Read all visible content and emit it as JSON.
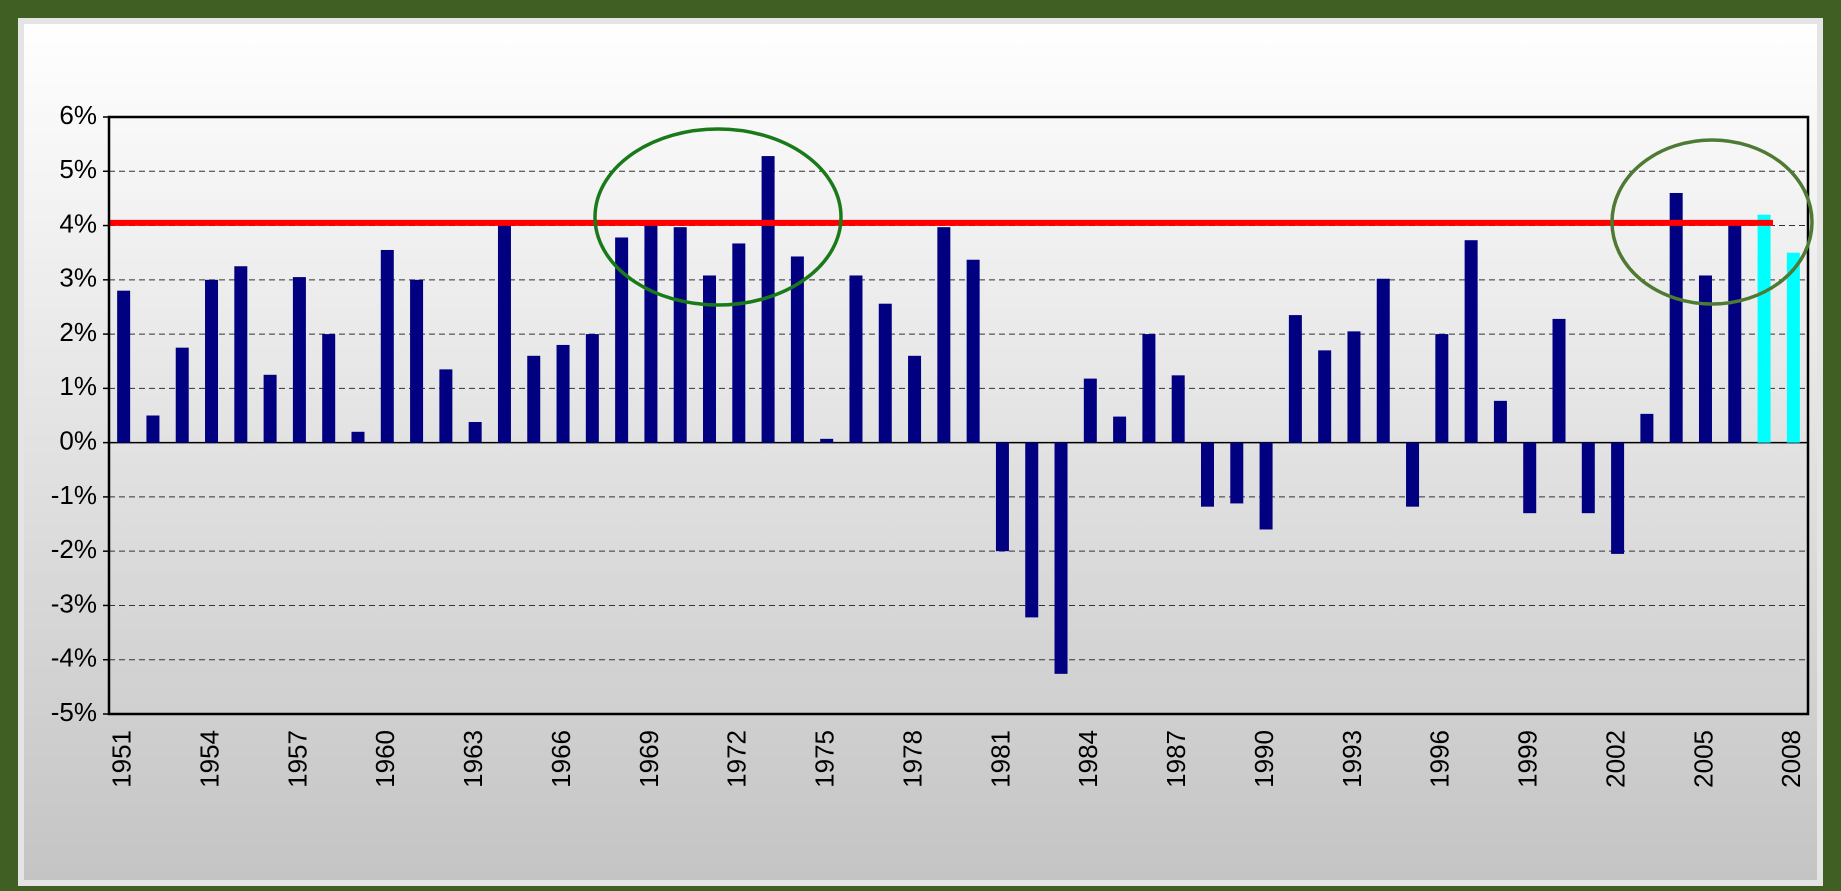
{
  "chart_data": {
    "type": "bar",
    "categories": [
      "1951",
      null,
      null,
      "1954",
      null,
      null,
      "1957",
      null,
      null,
      "1960",
      null,
      null,
      "1963",
      null,
      null,
      "1966",
      null,
      null,
      "1969",
      null,
      null,
      "1972",
      null,
      null,
      "1975",
      null,
      null,
      "1978",
      null,
      null,
      "1981",
      null,
      null,
      "1984",
      null,
      null,
      "1987",
      null,
      null,
      "1990",
      null,
      null,
      "1993",
      null,
      null,
      "1996",
      null,
      null,
      "1999",
      null,
      null,
      "2002",
      null,
      null,
      "2005",
      null,
      null,
      "2008"
    ],
    "values": [
      2.8,
      0.5,
      1.75,
      3.0,
      3.25,
      1.25,
      3.05,
      2.0,
      0.2,
      3.55,
      3.0,
      1.35,
      0.38,
      4.05,
      1.6,
      1.8,
      2.0,
      3.78,
      4.1,
      3.97,
      3.08,
      3.67,
      5.28,
      3.43,
      0.07,
      3.08,
      2.56,
      1.6,
      3.97,
      3.37,
      -2.0,
      -3.22,
      -4.26,
      1.18,
      0.48,
      2.0,
      1.24,
      -1.18,
      -1.12,
      -1.6,
      2.35,
      1.7,
      2.05,
      3.02,
      -1.18,
      2.0,
      3.73,
      0.77,
      -1.3,
      2.28,
      -1.3,
      -2.05,
      0.53,
      4.6,
      3.08,
      4.05,
      4.2,
      3.5
    ],
    "colors": [
      "#000080",
      "#000080",
      "#000080",
      "#000080",
      "#000080",
      "#000080",
      "#000080",
      "#000080",
      "#000080",
      "#000080",
      "#000080",
      "#000080",
      "#000080",
      "#000080",
      "#000080",
      "#000080",
      "#000080",
      "#000080",
      "#000080",
      "#000080",
      "#000080",
      "#000080",
      "#000080",
      "#000080",
      "#000080",
      "#000080",
      "#000080",
      "#000080",
      "#000080",
      "#000080",
      "#000080",
      "#000080",
      "#000080",
      "#000080",
      "#000080",
      "#000080",
      "#000080",
      "#000080",
      "#000080",
      "#000080",
      "#000080",
      "#000080",
      "#000080",
      "#000080",
      "#000080",
      "#000080",
      "#000080",
      "#000080",
      "#000080",
      "#000080",
      "#000080",
      "#000080",
      "#000080",
      "#000080",
      "#000080",
      "#000080",
      "#00ffff",
      "#00ffff"
    ],
    "ylim": [
      -5,
      6
    ],
    "yticks": [
      {
        "value": -5,
        "label": "-5%"
      },
      {
        "value": -4,
        "label": "-4%"
      },
      {
        "value": -3,
        "label": "-3%"
      },
      {
        "value": -2,
        "label": "-2%"
      },
      {
        "value": -1,
        "label": "-1%"
      },
      {
        "value": 0,
        "label": "0%"
      },
      {
        "value": 1,
        "label": "1%"
      },
      {
        "value": 2,
        "label": "2%"
      },
      {
        "value": 3,
        "label": "3%"
      },
      {
        "value": 4,
        "label": "4%"
      },
      {
        "value": 5,
        "label": "5%"
      },
      {
        "value": 6,
        "label": "6%"
      }
    ],
    "grid": true,
    "reference_line": {
      "value": 4.05,
      "color": "#ff0000"
    }
  }
}
